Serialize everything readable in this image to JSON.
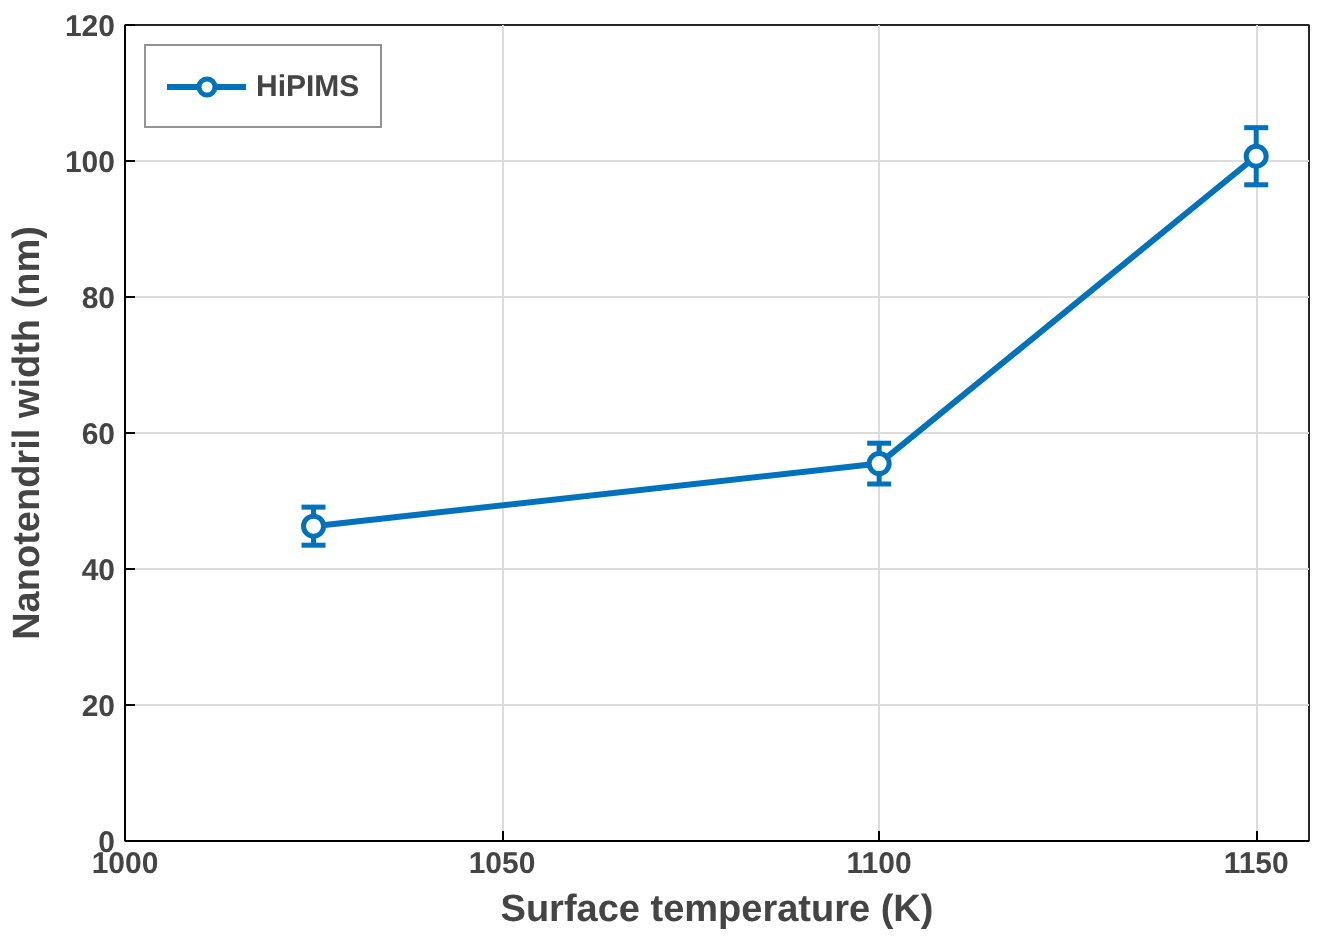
{
  "chart_data": {
    "type": "line",
    "xlabel": "Surface temperature (K)",
    "ylabel": "Nanotendril width (nm)",
    "x": [
      1025,
      1100,
      1150
    ],
    "series": [
      {
        "name": "HiPIMS",
        "color": "#0072bd",
        "values": [
          46.3,
          55.5,
          100.7
        ],
        "errors": [
          2.8,
          3.0,
          4.2
        ]
      }
    ],
    "xlim": [
      1000,
      1157
    ],
    "xticks": [
      1000,
      1050,
      1100,
      1150
    ],
    "ylim": [
      0,
      120
    ],
    "yticks": [
      0,
      20,
      40,
      60,
      80,
      100,
      120
    ],
    "grid": true,
    "legend": "top left",
    "marker": "circle",
    "line_style": "solid"
  }
}
